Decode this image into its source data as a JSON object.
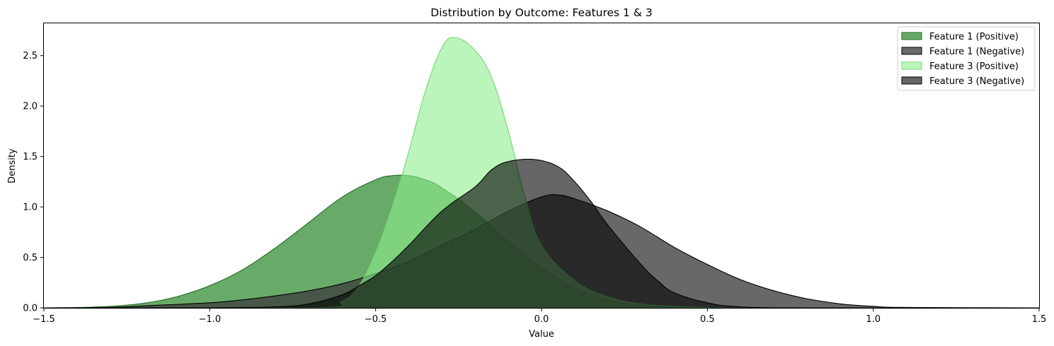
{
  "chart_data": {
    "type": "area",
    "title": "Distribution by Outcome: Features 1 & 3",
    "xlabel": "Value",
    "ylabel": "Density",
    "xlim": [
      -1.5,
      1.5
    ],
    "ylim": [
      0,
      2.82
    ],
    "xticks": [
      "−1.5",
      "−1.0",
      "−0.5",
      "0.0",
      "0.5",
      "1.0",
      "1.5"
    ],
    "xtick_values": [
      -1.5,
      -1.0,
      -0.5,
      0.0,
      0.5,
      1.0,
      1.5
    ],
    "yticks": [
      "0.0",
      "0.5",
      "1.0",
      "1.5",
      "2.0",
      "2.5"
    ],
    "ytick_values": [
      0.0,
      0.5,
      1.0,
      1.5,
      2.0,
      2.5
    ],
    "grid": false,
    "legend_position": "top-right",
    "series": [
      {
        "name": "Feature 1 (Positive)",
        "fill": "#2e8b2e",
        "fill_opacity": 0.72,
        "stroke": "#1f6b1f",
        "x": [
          -1.5,
          -1.4,
          -1.3,
          -1.2,
          -1.1,
          -1.0,
          -0.9,
          -0.8,
          -0.7,
          -0.6,
          -0.5,
          -0.45,
          -0.4,
          -0.35,
          -0.3,
          -0.2,
          -0.1,
          0.0,
          0.1,
          0.2,
          0.3,
          0.4,
          0.5,
          1.5
        ],
        "y": [
          0.0,
          0.004,
          0.015,
          0.045,
          0.11,
          0.22,
          0.38,
          0.6,
          0.85,
          1.1,
          1.27,
          1.31,
          1.31,
          1.27,
          1.19,
          0.95,
          0.66,
          0.4,
          0.2,
          0.08,
          0.03,
          0.01,
          0.0,
          0.0
        ]
      },
      {
        "name": "Feature 1 (Negative)",
        "fill": "#3d3d3d",
        "fill_opacity": 0.78,
        "stroke": "#000000",
        "x": [
          -1.5,
          -1.3,
          -1.2,
          -1.0,
          -0.9,
          -0.8,
          -0.7,
          -0.6,
          -0.5,
          -0.4,
          -0.3,
          -0.2,
          -0.1,
          0.0,
          0.05,
          0.1,
          0.2,
          0.3,
          0.4,
          0.5,
          0.6,
          0.7,
          0.8,
          0.9,
          1.0,
          1.1,
          1.5
        ],
        "y": [
          0.0,
          0.005,
          0.02,
          0.05,
          0.08,
          0.12,
          0.17,
          0.24,
          0.34,
          0.46,
          0.62,
          0.78,
          0.96,
          1.1,
          1.12,
          1.08,
          0.96,
          0.8,
          0.6,
          0.43,
          0.28,
          0.17,
          0.09,
          0.04,
          0.015,
          0.004,
          0.0
        ]
      },
      {
        "name": "Feature 3 (Positive)",
        "fill": "#90ee90",
        "fill_opacity": 0.6,
        "stroke": "#6fd66f",
        "x": [
          -1.5,
          -0.7,
          -0.6,
          -0.55,
          -0.5,
          -0.45,
          -0.4,
          -0.35,
          -0.3,
          -0.26,
          -0.2,
          -0.15,
          -0.1,
          -0.05,
          0.0,
          0.1,
          0.2,
          0.3,
          0.4,
          0.5,
          0.6,
          1.5
        ],
        "y": [
          0.0,
          0.0,
          0.07,
          0.22,
          0.55,
          1.0,
          1.55,
          2.15,
          2.58,
          2.68,
          2.55,
          2.28,
          1.75,
          1.1,
          0.62,
          0.27,
          0.11,
          0.04,
          0.015,
          0.005,
          0.0,
          0.0
        ]
      },
      {
        "name": "Feature 3 (Negative)",
        "fill": "#000000",
        "fill_opacity": 0.6,
        "stroke": "#000000",
        "x": [
          -1.5,
          -1.0,
          -0.8,
          -0.7,
          -0.6,
          -0.55,
          -0.5,
          -0.45,
          -0.4,
          -0.3,
          -0.2,
          -0.15,
          -0.1,
          -0.02,
          0.05,
          0.1,
          0.15,
          0.2,
          0.3,
          0.35,
          0.4,
          0.5,
          0.6,
          0.8,
          1.5
        ],
        "y": [
          0.0,
          0.0,
          0.01,
          0.04,
          0.13,
          0.22,
          0.32,
          0.46,
          0.62,
          0.96,
          1.2,
          1.37,
          1.45,
          1.47,
          1.4,
          1.25,
          1.05,
          0.82,
          0.43,
          0.27,
          0.15,
          0.05,
          0.01,
          0.0,
          0.0
        ]
      }
    ]
  }
}
